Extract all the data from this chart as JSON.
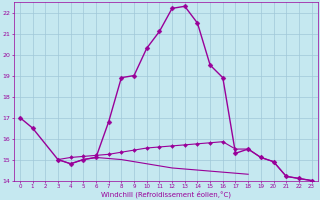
{
  "xlabel": "Windchill (Refroidissement éolien,°C)",
  "background_color": "#c5e8f0",
  "grid_color": "#a0c8d8",
  "line_color": "#990099",
  "xlim": [
    -0.5,
    23.5
  ],
  "ylim": [
    14,
    22.5
  ],
  "xticks": [
    0,
    1,
    2,
    3,
    4,
    5,
    6,
    7,
    8,
    9,
    10,
    11,
    12,
    13,
    14,
    15,
    16,
    17,
    18,
    19,
    20,
    21,
    22,
    23
  ],
  "yticks": [
    14,
    15,
    16,
    17,
    18,
    19,
    20,
    21,
    22
  ],
  "series": [
    {
      "x": [
        0,
        1,
        3,
        4,
        5,
        6,
        7,
        8,
        9,
        10,
        11,
        12,
        13,
        14,
        15,
        16,
        17,
        18,
        19,
        20,
        21,
        22,
        23
      ],
      "y": [
        17.0,
        16.5,
        15.0,
        14.8,
        15.0,
        15.1,
        16.8,
        18.9,
        19.0,
        20.3,
        21.1,
        22.2,
        22.3,
        21.5,
        19.5,
        18.9,
        15.3,
        15.5,
        15.1,
        14.9,
        14.2,
        14.1,
        14.0
      ],
      "marker": "D",
      "markersize": 2.5,
      "linewidth": 1.0,
      "linestyle": "-"
    },
    {
      "x": [
        3,
        4,
        5,
        6,
        7,
        8,
        9,
        10,
        11,
        12,
        13,
        14,
        15,
        16,
        17,
        18,
        19,
        20,
        21,
        22,
        23
      ],
      "y": [
        15.0,
        15.1,
        15.15,
        15.2,
        15.25,
        15.35,
        15.45,
        15.55,
        15.6,
        15.65,
        15.7,
        15.75,
        15.8,
        15.85,
        15.5,
        15.5,
        15.1,
        14.9,
        14.2,
        14.1,
        14.0
      ],
      "marker": "D",
      "markersize": 2.0,
      "linewidth": 0.8,
      "linestyle": "-"
    },
    {
      "x": [
        3,
        4,
        5,
        6,
        7,
        8,
        9,
        10,
        11,
        12,
        13,
        14,
        15,
        16,
        17,
        18
      ],
      "y": [
        15.0,
        14.8,
        15.0,
        15.1,
        15.05,
        15.0,
        14.9,
        14.8,
        14.7,
        14.6,
        14.55,
        14.5,
        14.45,
        14.4,
        14.35,
        14.3
      ],
      "marker": null,
      "markersize": 0,
      "linewidth": 0.8,
      "linestyle": "-"
    }
  ]
}
